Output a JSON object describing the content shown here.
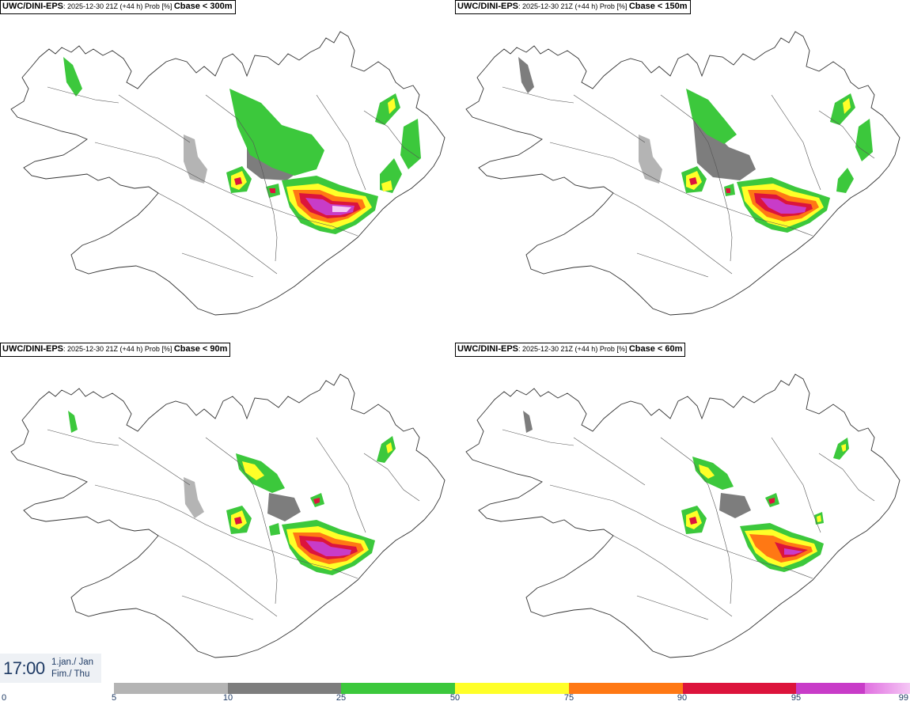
{
  "panels": [
    {
      "model": "UWC/DINI-EPS",
      "meta": ": 2025-12-30 21Z (+44 h) Prob [%] ",
      "variable": "Cbase < 300m"
    },
    {
      "model": "UWC/DINI-EPS",
      "meta": ": 2025-12-30 21Z (+44 h) Prob [%] ",
      "variable": "Cbase < 150m"
    },
    {
      "model": "UWC/DINI-EPS",
      "meta": ": 2025-12-30 21Z (+44 h) Prob [%] ",
      "variable": "Cbase < 90m"
    },
    {
      "model": "UWC/DINI-EPS",
      "meta": ": 2025-12-30 21Z (+44 h) Prob [%] ",
      "variable": "Cbase < 60m"
    }
  ],
  "valid_time": {
    "time": "17:00",
    "date": "1.jan./ Jan",
    "weekday": "Fim./ Thu"
  },
  "legend": {
    "ticks": [
      "0",
      "5",
      "10",
      "25",
      "50",
      "75",
      "90",
      "95",
      "99"
    ],
    "bins": [
      {
        "from": 5,
        "to": 10,
        "color": "#b4b4b4"
      },
      {
        "from": 10,
        "to": 25,
        "color": "#7d7d7d"
      },
      {
        "from": 25,
        "to": 50,
        "color": "#3cc83c"
      },
      {
        "from": 50,
        "to": 75,
        "color": "#ffff28"
      },
      {
        "from": 75,
        "to": 90,
        "color": "#ff7814"
      },
      {
        "from": 90,
        "to": 95,
        "color": "#dc143c"
      },
      {
        "from": 95,
        "to": 99,
        "color": "#c83cc8"
      },
      {
        "from": 99,
        "to": 100,
        "color": "#f5c8f5"
      }
    ]
  }
}
